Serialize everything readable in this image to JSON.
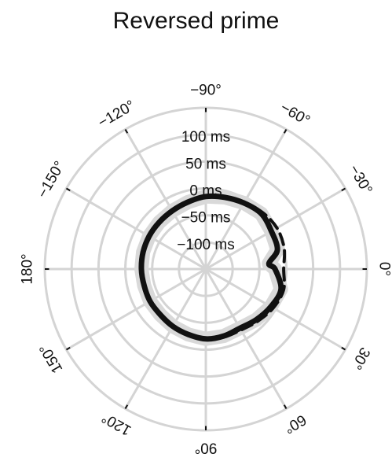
{
  "chart_data": {
    "type": "polar-line",
    "title": "Reversed prime",
    "radial_ticks": [
      {
        "value": -100,
        "label": "−100 ms"
      },
      {
        "value": -50,
        "label": "−50 ms"
      },
      {
        "value": 0,
        "label": "0 ms"
      },
      {
        "value": 50,
        "label": "50 ms"
      },
      {
        "value": 100,
        "label": "100 ms"
      }
    ],
    "rlim": [
      -150,
      150
    ],
    "angular_ticks": [
      {
        "angle": 0,
        "label": "0°"
      },
      {
        "angle": 30,
        "label": "30°"
      },
      {
        "angle": 60,
        "label": "60°"
      },
      {
        "angle": 90,
        "label": "90°"
      },
      {
        "angle": 120,
        "label": "120°"
      },
      {
        "angle": 150,
        "label": "150°"
      },
      {
        "angle": 180,
        "label": "180°"
      },
      {
        "angle": -150,
        "label": "−150°"
      },
      {
        "angle": -120,
        "label": "−120°"
      },
      {
        "angle": -90,
        "label": "−90°"
      },
      {
        "angle": -60,
        "label": "−60°"
      },
      {
        "angle": -30,
        "label": "−30°"
      }
    ],
    "series": [
      {
        "style": "solid",
        "color": "#111111",
        "band_color": "#d9d9d9",
        "points": [
          {
            "angle": 0,
            "r": -21
          },
          {
            "angle": 15,
            "r": -5
          },
          {
            "angle": 30,
            "r": -10
          },
          {
            "angle": 45,
            "r": -17
          },
          {
            "angle": 60,
            "r": -23
          },
          {
            "angle": 75,
            "r": -21
          },
          {
            "angle": 90,
            "r": -20
          },
          {
            "angle": 105,
            "r": -24
          },
          {
            "angle": 120,
            "r": -27
          },
          {
            "angle": 135,
            "r": -30
          },
          {
            "angle": 150,
            "r": -30
          },
          {
            "angle": 165,
            "r": -31
          },
          {
            "angle": 180,
            "r": -30
          },
          {
            "angle": -165,
            "r": -29
          },
          {
            "angle": -150,
            "r": -28
          },
          {
            "angle": -135,
            "r": -27
          },
          {
            "angle": -120,
            "r": -25
          },
          {
            "angle": -105,
            "r": -21
          },
          {
            "angle": -90,
            "r": -15
          },
          {
            "angle": -75,
            "r": -12
          },
          {
            "angle": -60,
            "r": -8
          },
          {
            "angle": -45,
            "r": -4
          },
          {
            "angle": -30,
            "r": -9
          },
          {
            "angle": -15,
            "r": -12
          },
          {
            "angle": -5,
            "r": -32
          }
        ]
      },
      {
        "style": "dashed",
        "color": "#111111",
        "points": [
          {
            "angle": 0,
            "r": -5
          },
          {
            "angle": 15,
            "r": 0
          },
          {
            "angle": 30,
            "r": -5
          },
          {
            "angle": 45,
            "r": -13
          },
          {
            "angle": 60,
            "r": -19
          },
          {
            "angle": 75,
            "r": -19
          },
          {
            "angle": 90,
            "r": -19
          },
          {
            "angle": 105,
            "r": -24
          },
          {
            "angle": 120,
            "r": -27
          },
          {
            "angle": 135,
            "r": -30
          },
          {
            "angle": 150,
            "r": -30
          },
          {
            "angle": 165,
            "r": -31
          },
          {
            "angle": 180,
            "r": -30
          },
          {
            "angle": -165,
            "r": -29
          },
          {
            "angle": -150,
            "r": -28
          },
          {
            "angle": -135,
            "r": -27
          },
          {
            "angle": -120,
            "r": -25
          },
          {
            "angle": -105,
            "r": -21
          },
          {
            "angle": -90,
            "r": -15
          },
          {
            "angle": -75,
            "r": -12
          },
          {
            "angle": -60,
            "r": -8
          },
          {
            "angle": -45,
            "r": -1
          },
          {
            "angle": -30,
            "r": 3
          },
          {
            "angle": -15,
            "r": 1
          }
        ]
      }
    ]
  }
}
